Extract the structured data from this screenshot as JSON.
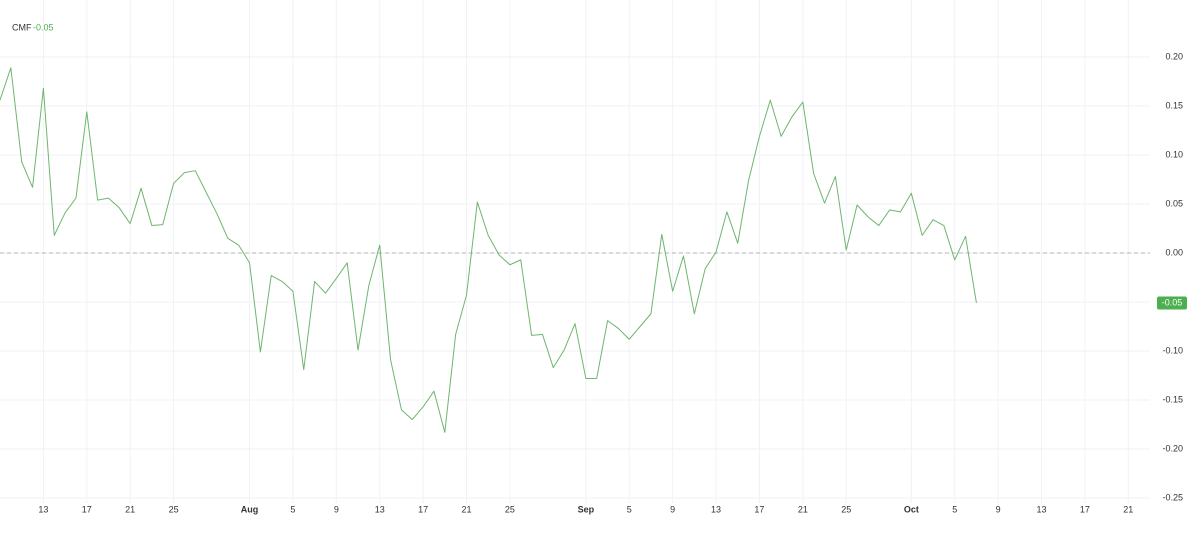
{
  "chart_data": {
    "type": "line",
    "indicator": "CMF",
    "last_value_label": "-0.05",
    "x": [
      "07-09",
      "07-10",
      "07-11",
      "07-12",
      "07-13",
      "07-14",
      "07-15",
      "07-16",
      "07-17",
      "07-18",
      "07-19",
      "07-20",
      "07-21",
      "07-22",
      "07-23",
      "07-24",
      "07-25",
      "07-26",
      "07-27",
      "07-28",
      "07-29",
      "07-30",
      "07-31",
      "08-01",
      "08-02",
      "08-03",
      "08-04",
      "08-05",
      "08-06",
      "08-07",
      "08-08",
      "08-09",
      "08-10",
      "08-11",
      "08-12",
      "08-13",
      "08-14",
      "08-15",
      "08-16",
      "08-17",
      "08-18",
      "08-19",
      "08-20",
      "08-21",
      "08-22",
      "08-23",
      "08-24",
      "08-25",
      "08-26",
      "08-27",
      "08-28",
      "08-29",
      "08-30",
      "08-31",
      "09-01",
      "09-02",
      "09-03",
      "09-04",
      "09-05",
      "09-06",
      "09-07",
      "09-08",
      "09-09",
      "09-10",
      "09-11",
      "09-12",
      "09-13",
      "09-14",
      "09-15",
      "09-16",
      "09-17",
      "09-18",
      "09-19",
      "09-20",
      "09-21",
      "09-22",
      "09-23",
      "09-24",
      "09-25",
      "09-26",
      "09-27",
      "09-28",
      "09-29",
      "09-30",
      "10-01",
      "10-02",
      "10-03",
      "10-04",
      "10-05",
      "10-06",
      "10-07"
    ],
    "series": [
      {
        "name": "CMF",
        "color": "#6fb56f",
        "values": [
          0.156,
          0.189,
          0.093,
          0.067,
          0.168,
          0.018,
          0.041,
          0.056,
          0.144,
          0.054,
          0.056,
          0.046,
          0.03,
          0.066,
          0.028,
          0.029,
          0.071,
          0.082,
          0.084,
          0.062,
          0.04,
          0.015,
          0.008,
          -0.01,
          -0.101,
          -0.023,
          -0.029,
          -0.039,
          -0.119,
          -0.029,
          -0.041,
          -0.026,
          -0.01,
          -0.099,
          -0.033,
          0.008,
          -0.109,
          -0.16,
          -0.17,
          -0.157,
          -0.141,
          -0.183,
          -0.083,
          -0.043,
          0.052,
          0.018,
          -0.002,
          -0.012,
          -0.007,
          -0.084,
          -0.083,
          -0.117,
          -0.099,
          -0.072,
          -0.128,
          -0.128,
          -0.069,
          -0.077,
          -0.088,
          -0.075,
          -0.062,
          0.019,
          -0.039,
          -0.003,
          -0.062,
          -0.016,
          0.001,
          0.042,
          0.01,
          0.074,
          0.119,
          0.156,
          0.119,
          0.139,
          0.154,
          0.081,
          0.051,
          0.078,
          0.003,
          0.049,
          0.037,
          0.028,
          0.044,
          0.042,
          0.061,
          0.018,
          0.034,
          0.028,
          -0.007,
          0.017,
          -0.051
        ]
      }
    ],
    "xlim": [
      "07-09",
      "10-23"
    ],
    "xticks": [
      {
        "value": "07-13",
        "label": "13"
      },
      {
        "value": "07-17",
        "label": "17"
      },
      {
        "value": "07-21",
        "label": "21"
      },
      {
        "value": "07-25",
        "label": "25"
      },
      {
        "value": "08-01",
        "label": "Aug"
      },
      {
        "value": "08-05",
        "label": "5"
      },
      {
        "value": "08-09",
        "label": "9"
      },
      {
        "value": "08-13",
        "label": "13"
      },
      {
        "value": "08-17",
        "label": "17"
      },
      {
        "value": "08-21",
        "label": "21"
      },
      {
        "value": "08-25",
        "label": "25"
      },
      {
        "value": "09-01",
        "label": "Sep"
      },
      {
        "value": "09-05",
        "label": "5"
      },
      {
        "value": "09-09",
        "label": "9"
      },
      {
        "value": "09-13",
        "label": "13"
      },
      {
        "value": "09-17",
        "label": "17"
      },
      {
        "value": "09-21",
        "label": "21"
      },
      {
        "value": "09-25",
        "label": "25"
      },
      {
        "value": "10-01",
        "label": "Oct"
      },
      {
        "value": "10-05",
        "label": "5"
      },
      {
        "value": "10-09",
        "label": "9"
      },
      {
        "value": "10-13",
        "label": "13"
      },
      {
        "value": "10-17",
        "label": "17"
      },
      {
        "value": "10-21",
        "label": "21"
      }
    ],
    "ylim": [
      -0.255,
      0.235
    ],
    "yticks": [
      {
        "value": 0.2,
        "label": "0.20"
      },
      0.15,
      {
        "value": 0.1,
        "label": "0.10"
      },
      0.05,
      {
        "value": 0,
        "label": "0.00"
      },
      -0.05,
      {
        "value": -0.1,
        "label": "-0.10"
      },
      -0.15,
      {
        "value": -0.2,
        "label": "-0.20"
      },
      -0.25
    ],
    "hlines": [
      0
    ],
    "grid": true
  }
}
